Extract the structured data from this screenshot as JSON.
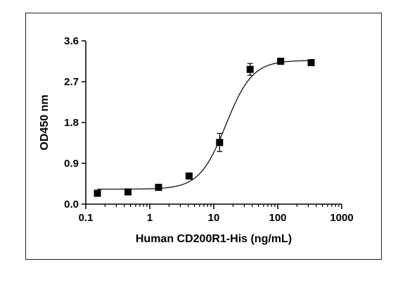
{
  "chart_data": {
    "type": "scatter",
    "title": "",
    "xlabel": "Human CD200R1-His (ng/mL)",
    "ylabel": "OD450 nm",
    "x_scale": "log",
    "xlim": [
      0.1,
      1000
    ],
    "ylim": [
      0,
      3.6
    ],
    "x_ticks": [
      "0.1",
      "1",
      "10",
      "100",
      "1000"
    ],
    "y_ticks": [
      "0.0",
      "0.9",
      "1.8",
      "2.7",
      "3.6"
    ],
    "grid": false,
    "legend": "none",
    "series": [
      {
        "x": [
          0.152,
          0.457,
          1.372,
          4.115,
          12.35,
          37.04,
          111.1,
          333.3
        ],
        "y": [
          0.24,
          0.27,
          0.37,
          0.62,
          1.36,
          2.97,
          3.15,
          3.12
        ],
        "error": [
          0.0,
          0.0,
          0.0,
          0.0,
          0.2,
          0.13,
          0.0,
          0.0
        ],
        "marker": "square",
        "color": "#000000"
      }
    ],
    "fit_curve": {
      "model": "4PL",
      "bottom": 0.33,
      "top": 3.17,
      "ec50": 15.5,
      "hill": 2.1
    }
  }
}
